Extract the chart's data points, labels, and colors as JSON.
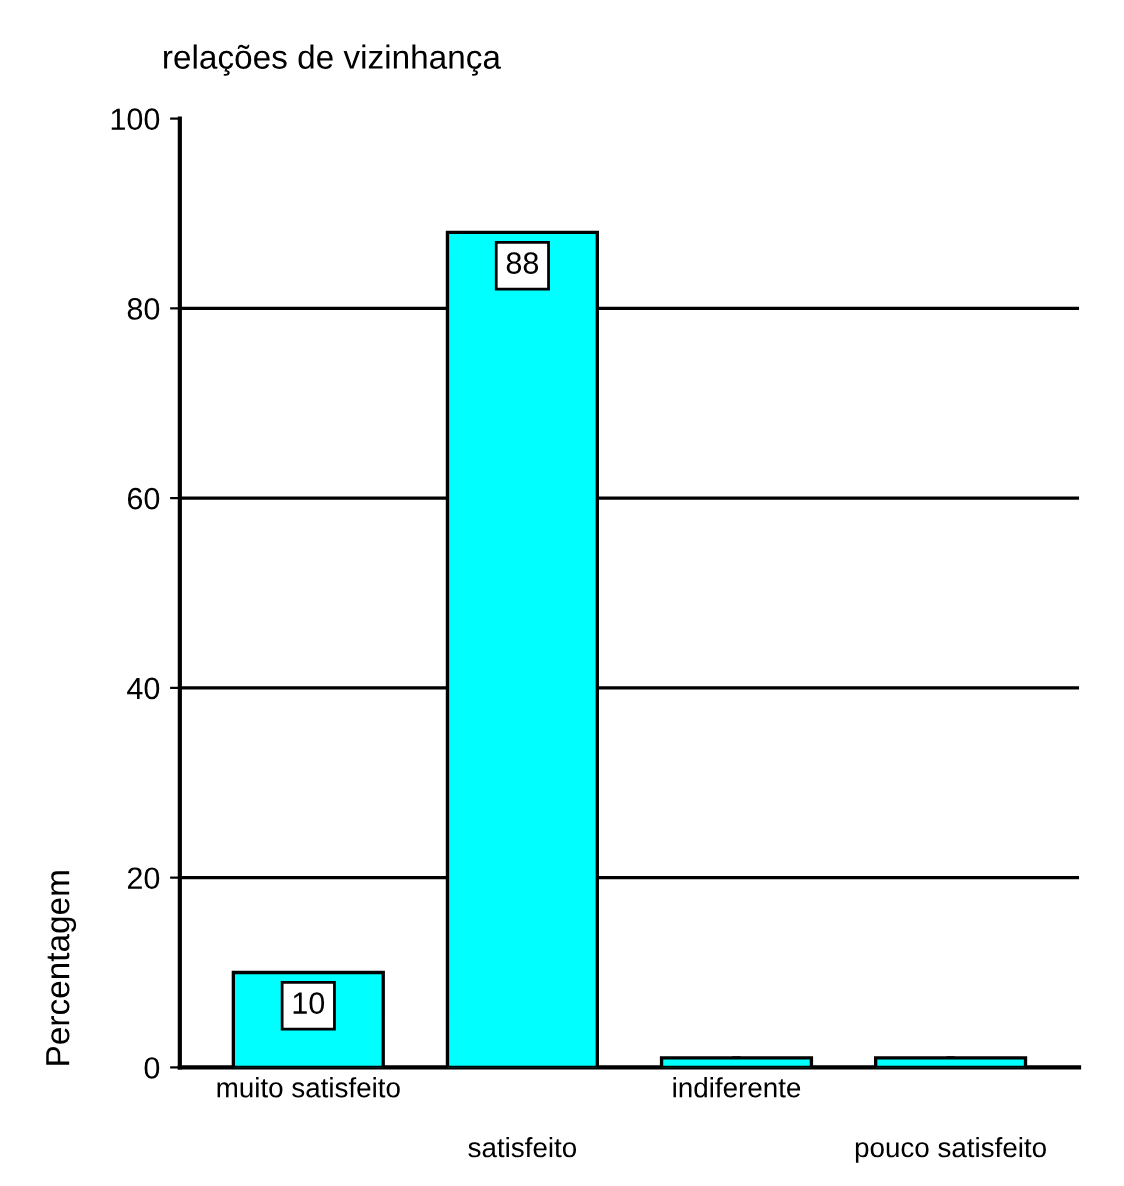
{
  "chart_data": {
    "type": "bar",
    "title": "relações de vizinhança",
    "ylabel": "Percentagem",
    "categories": [
      "muito satisfeito",
      "satisfeito",
      "indiferente",
      "pouco satisfeito"
    ],
    "values": [
      10,
      88,
      1,
      1
    ],
    "value_labels": [
      "10",
      "88",
      null,
      null
    ],
    "color": "#00ffff",
    "ylim": [
      0,
      100
    ],
    "yticks": [
      0,
      20,
      40,
      60,
      80,
      100
    ],
    "grid": "y",
    "legend": false
  }
}
